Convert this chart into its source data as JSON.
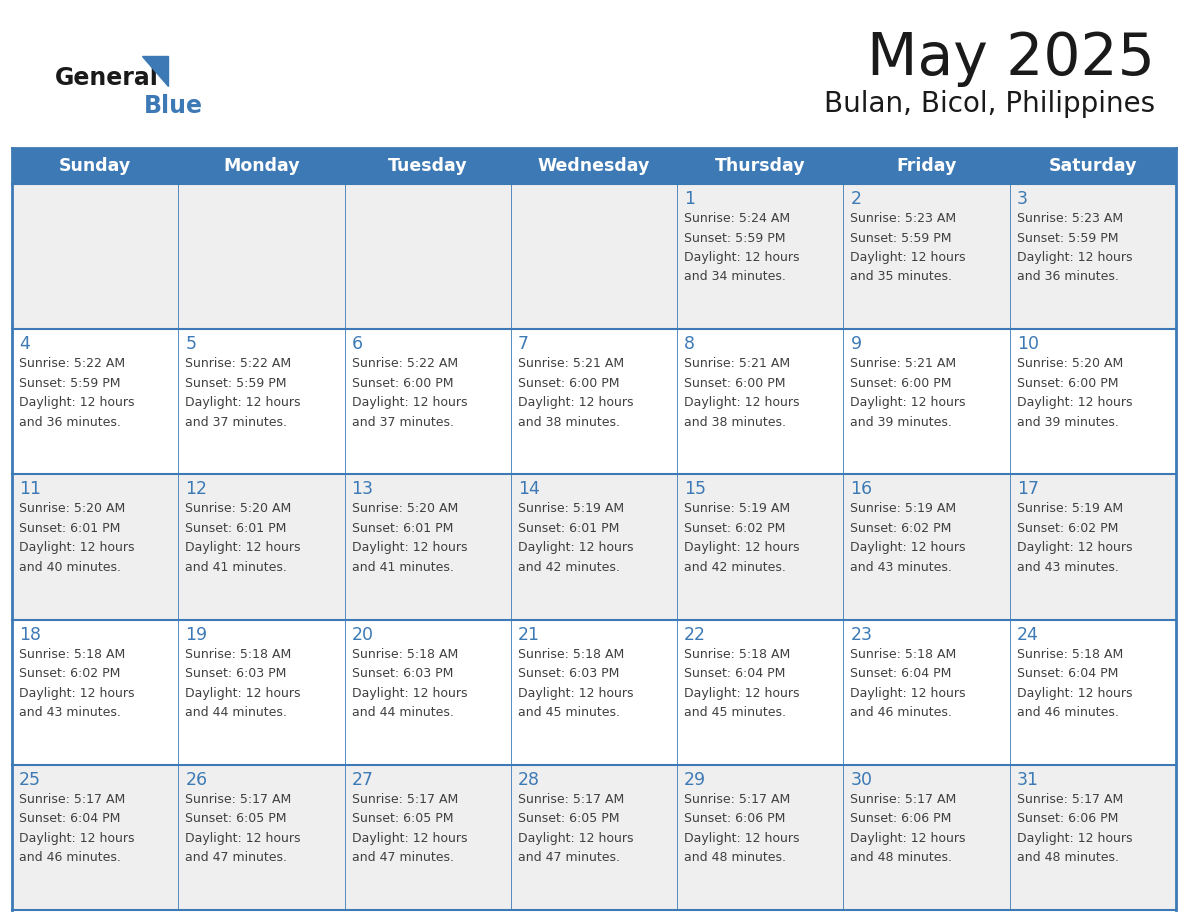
{
  "title": "May 2025",
  "subtitle": "Bulan, Bicol, Philippines",
  "days_of_week": [
    "Sunday",
    "Monday",
    "Tuesday",
    "Wednesday",
    "Thursday",
    "Friday",
    "Saturday"
  ],
  "header_bg": "#3D7AB5",
  "header_text": "#FFFFFF",
  "row_bg_even": "#EFEFEF",
  "row_bg_odd": "#FFFFFF",
  "day_number_color": "#3D7AB5",
  "cell_text_color": "#404040",
  "border_color": "#3D7AB5",
  "title_color": "#1a1a1a",
  "subtitle_color": "#1a1a1a",
  "logo_general_color": "#1a1a1a",
  "logo_blue_color": "#3D7AB5",
  "calendar_data": [
    [
      {
        "day": "",
        "sunrise": "",
        "sunset": "",
        "daylight": ""
      },
      {
        "day": "",
        "sunrise": "",
        "sunset": "",
        "daylight": ""
      },
      {
        "day": "",
        "sunrise": "",
        "sunset": "",
        "daylight": ""
      },
      {
        "day": "",
        "sunrise": "",
        "sunset": "",
        "daylight": ""
      },
      {
        "day": "1",
        "sunrise": "5:24 AM",
        "sunset": "5:59 PM",
        "daylight": "12 hours and 34 minutes."
      },
      {
        "day": "2",
        "sunrise": "5:23 AM",
        "sunset": "5:59 PM",
        "daylight": "12 hours and 35 minutes."
      },
      {
        "day": "3",
        "sunrise": "5:23 AM",
        "sunset": "5:59 PM",
        "daylight": "12 hours and 36 minutes."
      }
    ],
    [
      {
        "day": "4",
        "sunrise": "5:22 AM",
        "sunset": "5:59 PM",
        "daylight": "12 hours and 36 minutes."
      },
      {
        "day": "5",
        "sunrise": "5:22 AM",
        "sunset": "5:59 PM",
        "daylight": "12 hours and 37 minutes."
      },
      {
        "day": "6",
        "sunrise": "5:22 AM",
        "sunset": "6:00 PM",
        "daylight": "12 hours and 37 minutes."
      },
      {
        "day": "7",
        "sunrise": "5:21 AM",
        "sunset": "6:00 PM",
        "daylight": "12 hours and 38 minutes."
      },
      {
        "day": "8",
        "sunrise": "5:21 AM",
        "sunset": "6:00 PM",
        "daylight": "12 hours and 38 minutes."
      },
      {
        "day": "9",
        "sunrise": "5:21 AM",
        "sunset": "6:00 PM",
        "daylight": "12 hours and 39 minutes."
      },
      {
        "day": "10",
        "sunrise": "5:20 AM",
        "sunset": "6:00 PM",
        "daylight": "12 hours and 39 minutes."
      }
    ],
    [
      {
        "day": "11",
        "sunrise": "5:20 AM",
        "sunset": "6:01 PM",
        "daylight": "12 hours and 40 minutes."
      },
      {
        "day": "12",
        "sunrise": "5:20 AM",
        "sunset": "6:01 PM",
        "daylight": "12 hours and 41 minutes."
      },
      {
        "day": "13",
        "sunrise": "5:20 AM",
        "sunset": "6:01 PM",
        "daylight": "12 hours and 41 minutes."
      },
      {
        "day": "14",
        "sunrise": "5:19 AM",
        "sunset": "6:01 PM",
        "daylight": "12 hours and 42 minutes."
      },
      {
        "day": "15",
        "sunrise": "5:19 AM",
        "sunset": "6:02 PM",
        "daylight": "12 hours and 42 minutes."
      },
      {
        "day": "16",
        "sunrise": "5:19 AM",
        "sunset": "6:02 PM",
        "daylight": "12 hours and 43 minutes."
      },
      {
        "day": "17",
        "sunrise": "5:19 AM",
        "sunset": "6:02 PM",
        "daylight": "12 hours and 43 minutes."
      }
    ],
    [
      {
        "day": "18",
        "sunrise": "5:18 AM",
        "sunset": "6:02 PM",
        "daylight": "12 hours and 43 minutes."
      },
      {
        "day": "19",
        "sunrise": "5:18 AM",
        "sunset": "6:03 PM",
        "daylight": "12 hours and 44 minutes."
      },
      {
        "day": "20",
        "sunrise": "5:18 AM",
        "sunset": "6:03 PM",
        "daylight": "12 hours and 44 minutes."
      },
      {
        "day": "21",
        "sunrise": "5:18 AM",
        "sunset": "6:03 PM",
        "daylight": "12 hours and 45 minutes."
      },
      {
        "day": "22",
        "sunrise": "5:18 AM",
        "sunset": "6:04 PM",
        "daylight": "12 hours and 45 minutes."
      },
      {
        "day": "23",
        "sunrise": "5:18 AM",
        "sunset": "6:04 PM",
        "daylight": "12 hours and 46 minutes."
      },
      {
        "day": "24",
        "sunrise": "5:18 AM",
        "sunset": "6:04 PM",
        "daylight": "12 hours and 46 minutes."
      }
    ],
    [
      {
        "day": "25",
        "sunrise": "5:17 AM",
        "sunset": "6:04 PM",
        "daylight": "12 hours and 46 minutes."
      },
      {
        "day": "26",
        "sunrise": "5:17 AM",
        "sunset": "6:05 PM",
        "daylight": "12 hours and 47 minutes."
      },
      {
        "day": "27",
        "sunrise": "5:17 AM",
        "sunset": "6:05 PM",
        "daylight": "12 hours and 47 minutes."
      },
      {
        "day": "28",
        "sunrise": "5:17 AM",
        "sunset": "6:05 PM",
        "daylight": "12 hours and 47 minutes."
      },
      {
        "day": "29",
        "sunrise": "5:17 AM",
        "sunset": "6:06 PM",
        "daylight": "12 hours and 48 minutes."
      },
      {
        "day": "30",
        "sunrise": "5:17 AM",
        "sunset": "6:06 PM",
        "daylight": "12 hours and 48 minutes."
      },
      {
        "day": "31",
        "sunrise": "5:17 AM",
        "sunset": "6:06 PM",
        "daylight": "12 hours and 48 minutes."
      }
    ]
  ]
}
